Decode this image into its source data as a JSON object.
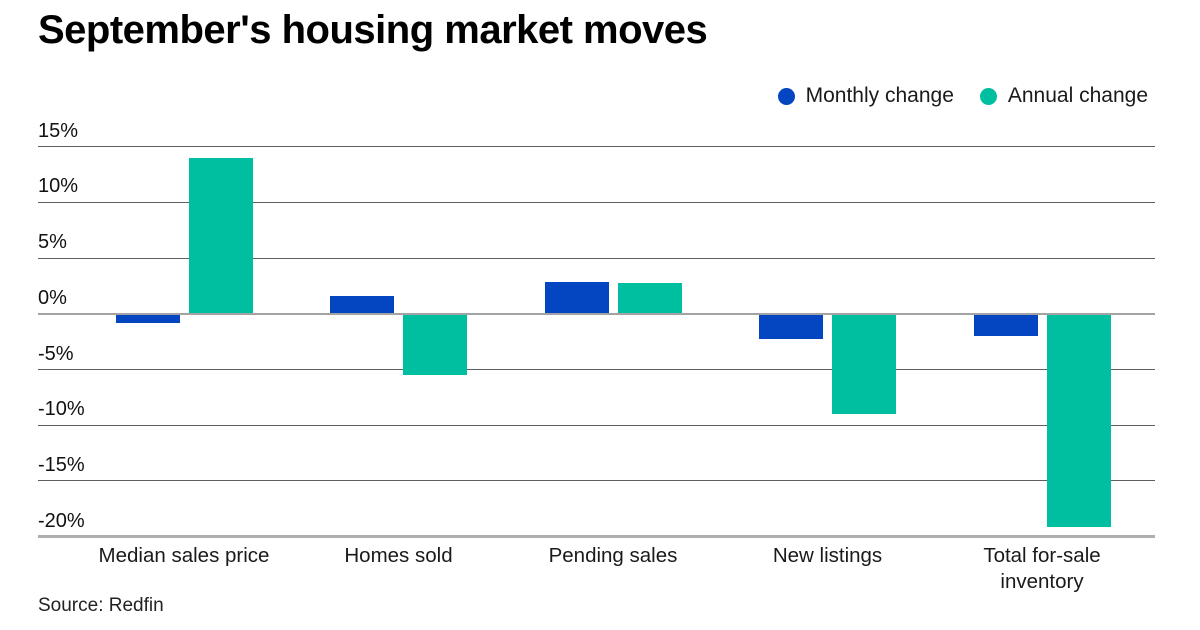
{
  "title": "September's housing market moves",
  "source": "Source: Redfin",
  "colors": {
    "monthly": "#0445c1",
    "annual": "#00bfa1",
    "gridline": "#5e5e5e",
    "baseline": "#a3a3a3",
    "axis_bottom": "#aeaeae",
    "text": "#1a1a1a"
  },
  "chart_data": {
    "type": "bar",
    "title": "September's housing market moves",
    "categories": [
      "Median sales price",
      "Homes sold",
      "Pending sales",
      "New listings",
      "Total for-sale inventory"
    ],
    "series": [
      {
        "name": "Monthly change",
        "color": "#0445c1",
        "values": [
          -0.8,
          1.6,
          2.9,
          -2.3,
          -2.0
        ]
      },
      {
        "name": "Annual change",
        "color": "#00bfa1",
        "values": [
          14.0,
          -5.5,
          2.8,
          -9.0,
          -19.1
        ]
      }
    ],
    "xlabel": "",
    "ylabel": "",
    "ylim": [
      -20,
      15
    ],
    "yticks": [
      {
        "value": 15,
        "label": "15%"
      },
      {
        "value": 10,
        "label": "10%"
      },
      {
        "value": 5,
        "label": "5%"
      },
      {
        "value": 0,
        "label": "0%"
      },
      {
        "value": -5,
        "label": "-5%"
      },
      {
        "value": -10,
        "label": "-10%"
      },
      {
        "value": -15,
        "label": "-15%"
      },
      {
        "value": -20,
        "label": "-20%"
      }
    ],
    "grid": "horizontal",
    "legend_position": "top-right",
    "source": "Source: Redfin"
  }
}
